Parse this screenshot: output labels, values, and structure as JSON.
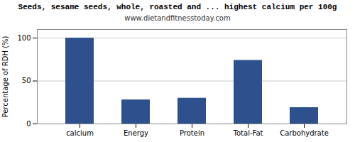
{
  "chart_data": {
    "type": "bar",
    "title": "Seeds, sesame seeds, whole, roasted and ... highest calcium per 100g",
    "subtitle": "www.dietandfitnesstoday.com",
    "ylabel": "Percentage of RDH (%)",
    "categories": [
      "calcium",
      "Energy",
      "Protein",
      "Total-Fat",
      "Carbohydrate"
    ],
    "values": [
      100,
      28,
      30,
      74,
      19
    ],
    "color": "#2E508C",
    "ylim": [
      0,
      110
    ],
    "yticks": [
      0,
      50,
      100
    ],
    "grid": true
  }
}
